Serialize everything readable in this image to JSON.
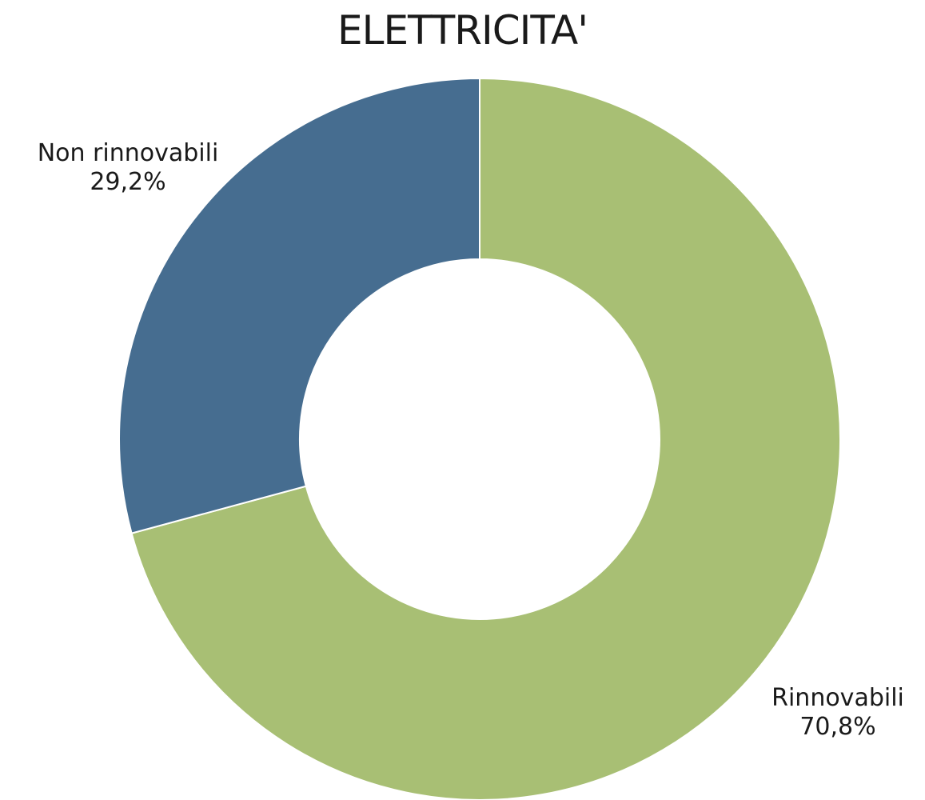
{
  "chart_data": {
    "type": "pie",
    "title": "ELETTRICITA'",
    "donut": true,
    "slices": [
      {
        "name": "Rinnovabili",
        "value": 70.8,
        "label": "70,8%",
        "color": "#a8bf74"
      },
      {
        "name": "Non rinnovabili",
        "value": 29.2,
        "label": "29,2%",
        "color": "#466d90"
      }
    ]
  }
}
